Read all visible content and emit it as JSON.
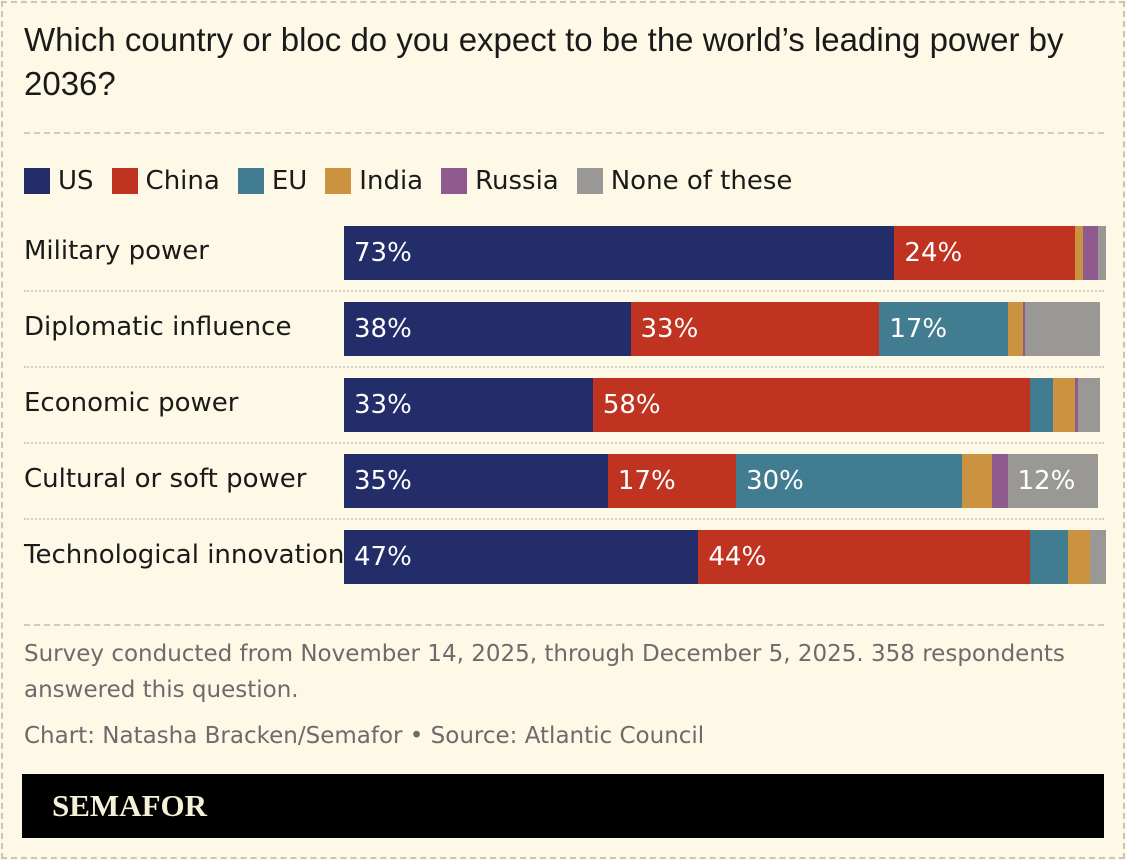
{
  "title": "Which country or bloc do you expect to be the world’s leading power by 2036?",
  "chart_data": {
    "type": "bar",
    "orientation": "horizontal",
    "stacked": true,
    "unit": "%",
    "categories": [
      "Military power",
      "Diplomatic influence",
      "Economic power",
      "Cultural or soft power",
      "Technological innovation"
    ],
    "series": [
      {
        "name": "US",
        "color": "#232d6a",
        "values": [
          73,
          38,
          33,
          35,
          47
        ]
      },
      {
        "name": "China",
        "color": "#c03320",
        "values": [
          24,
          33,
          58,
          17,
          44
        ]
      },
      {
        "name": "EU",
        "color": "#427c91",
        "values": [
          0,
          17,
          3,
          30,
          5
        ]
      },
      {
        "name": "India",
        "color": "#cb9340",
        "values": [
          1,
          2,
          3,
          4,
          3
        ]
      },
      {
        "name": "Russia",
        "color": "#8f5a8e",
        "values": [
          2,
          0.3,
          0.3,
          2,
          0
        ]
      },
      {
        "name": "None of these",
        "color": "#999895",
        "values": [
          1,
          10,
          3,
          12,
          2
        ]
      }
    ],
    "data_labels": [
      [
        "73%",
        "24%",
        "",
        "",
        "",
        ""
      ],
      [
        "38%",
        "33%",
        "17%",
        "",
        "",
        ""
      ],
      [
        "33%",
        "58%",
        "",
        "",
        "",
        ""
      ],
      [
        "35%",
        "17%",
        "30%",
        "",
        "",
        "12%"
      ],
      [
        "47%",
        "44%",
        "",
        "",
        "",
        ""
      ]
    ],
    "legend_position": "top-left",
    "grid": false
  },
  "footer": {
    "note": "Survey conducted from November 14, 2025, through December 5, 2025. 358 respondents answered this question.",
    "credit": "Chart: Natasha Bracken/Semafor • Source: Atlantic Council",
    "brand": "SEMAFOR"
  }
}
